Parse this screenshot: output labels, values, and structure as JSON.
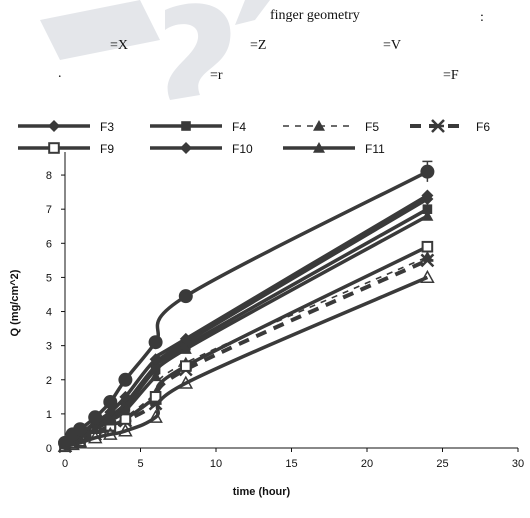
{
  "header": {
    "title": "finger geometry",
    "colon": ":",
    "eq_x": "=X",
    "eq_z": "=Z",
    "eq_v": "=V",
    "dot": ".",
    "eq_r": "=r",
    "eq_f": "=F"
  },
  "watermark": {
    "color": "#e4e6ea"
  },
  "chart_data": {
    "type": "line",
    "title": "",
    "xlabel": "time (hour)",
    "ylabel": "Q (mg/cm^2)",
    "xlim": [
      0,
      30
    ],
    "ylim": [
      0,
      8.5
    ],
    "xticks": [
      0,
      5,
      10,
      15,
      20,
      25,
      30
    ],
    "yticks": [
      0,
      1,
      2,
      3,
      4,
      5,
      6,
      7,
      8
    ],
    "grid": false,
    "legend_position": "top",
    "x": [
      0,
      0.5,
      1,
      2,
      3,
      4,
      6,
      8,
      24
    ],
    "series": [
      {
        "name": "F3",
        "values": [
          0.1,
          0.25,
          0.35,
          0.65,
          0.95,
          1.3,
          2.4,
          3.1,
          7.3
        ],
        "marker": "diamond",
        "dash": "solid",
        "error": 0
      },
      {
        "name": "F4",
        "values": [
          0.1,
          0.25,
          0.35,
          0.6,
          0.9,
          1.2,
          2.3,
          3.0,
          7.0
        ],
        "marker": "square",
        "dash": "solid",
        "error": 0
      },
      {
        "name": "F5",
        "values": [
          0.05,
          0.15,
          0.25,
          0.45,
          0.65,
          0.9,
          1.6,
          2.5,
          5.6
        ],
        "marker": "triangle",
        "dash": "dashed",
        "error": 0
      },
      {
        "name": "F6",
        "values": [
          0.05,
          0.15,
          0.2,
          0.4,
          0.6,
          0.8,
          1.3,
          2.3,
          5.5
        ],
        "marker": "star",
        "dash": "thick-dashed",
        "error": 0
      },
      {
        "name": "F9",
        "values": [
          0.05,
          0.15,
          0.2,
          0.45,
          0.65,
          0.85,
          1.5,
          2.4,
          5.9
        ],
        "marker": "square-open",
        "dash": "solid",
        "error": 0
      },
      {
        "name": "F10",
        "values": [
          0.1,
          0.3,
          0.4,
          0.75,
          1.05,
          1.5,
          2.6,
          3.2,
          7.4
        ],
        "marker": "diamond-filled",
        "dash": "solid",
        "error": 0
      },
      {
        "name": "F11",
        "values": [
          0.1,
          0.25,
          0.3,
          0.55,
          0.8,
          1.1,
          2.1,
          2.9,
          6.8
        ],
        "marker": "triangle-filled",
        "dash": "solid",
        "error": 0
      },
      {
        "name": "",
        "values": [
          0.05,
          0.1,
          0.15,
          0.3,
          0.4,
          0.5,
          0.9,
          1.9,
          5.0
        ],
        "marker": "triangle-open",
        "dash": "solid",
        "error": 0
      },
      {
        "name": "",
        "values": [
          0.15,
          0.4,
          0.55,
          0.9,
          1.35,
          2.0,
          3.1,
          4.45,
          8.1
        ],
        "marker": "circle",
        "dash": "solid",
        "error": 0.3
      }
    ],
    "line_color": "#3a3a3a"
  }
}
